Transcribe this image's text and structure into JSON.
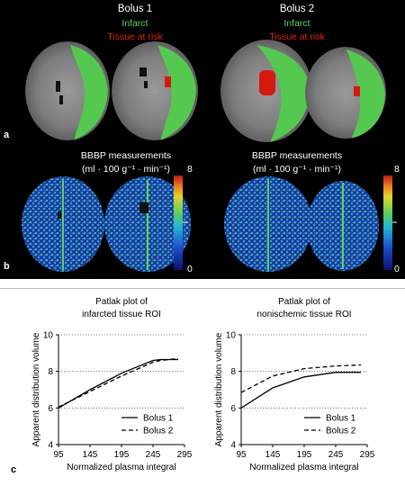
{
  "panel_a": {
    "label": "a",
    "bolus1_title": "Bolus 1",
    "bolus2_title": "Bolus 2",
    "legend_infarct": "Infarct",
    "legend_risk": "Tissue at risk",
    "colors": {
      "infarct": "#55c94f",
      "risk": "#d41a10"
    }
  },
  "panel_b": {
    "label": "b",
    "title_line1": "BBBP measurements",
    "title_line2": "(ml · 100 g⁻¹ · min⁻¹)",
    "colorbar_max": "8",
    "colorbar_min": "0"
  },
  "panel_c": {
    "label": "c"
  },
  "chart_data": [
    {
      "type": "line",
      "title": "Patlak plot of infarcted tissue ROI",
      "title_line1": "Patlak plot of",
      "title_line2": "infarcted tissue ROI",
      "xlabel": "Normalized plasma integral",
      "ylabel": "Apparent distribution volume",
      "xlim": [
        95,
        295
      ],
      "ylim": [
        4,
        10
      ],
      "xticks": [
        "95",
        "145",
        "195",
        "245",
        "295"
      ],
      "yticks": [
        "4",
        "6",
        "8",
        "10"
      ],
      "grid": "horizontal dotted",
      "legend": "bottom-right",
      "series": [
        {
          "name": "Bolus 1",
          "style": "solid",
          "x": [
            95,
            145,
            195,
            245,
            257,
            285
          ],
          "y": [
            6.0,
            7.0,
            7.9,
            8.6,
            8.65,
            8.65
          ]
        },
        {
          "name": "Bolus 2",
          "style": "dashed",
          "x": [
            95,
            145,
            195,
            245,
            257,
            285
          ],
          "y": [
            6.05,
            6.9,
            7.75,
            8.5,
            8.6,
            8.7
          ]
        }
      ]
    },
    {
      "type": "line",
      "title": "Patlak plot of nonischemic tissue ROI",
      "title_line1": "Patlak plot of",
      "title_line2": "nonischemic tissue ROI",
      "xlabel": "Normalized plasma integral",
      "ylabel": "Apparent distribution volume",
      "xlim": [
        95,
        295
      ],
      "ylim": [
        4,
        10
      ],
      "xticks": [
        "95",
        "145",
        "195",
        "245",
        "295"
      ],
      "yticks": [
        "4",
        "6",
        "8",
        "10"
      ],
      "grid": "horizontal dotted",
      "legend": "bottom-right",
      "series": [
        {
          "name": "Bolus 1",
          "style": "solid",
          "x": [
            95,
            145,
            195,
            245,
            285
          ],
          "y": [
            6.0,
            7.1,
            7.7,
            7.95,
            7.95
          ]
        },
        {
          "name": "Bolus 2",
          "style": "dashed",
          "x": [
            95,
            145,
            195,
            245,
            285
          ],
          "y": [
            6.85,
            7.75,
            8.15,
            8.3,
            8.35
          ]
        }
      ]
    }
  ]
}
